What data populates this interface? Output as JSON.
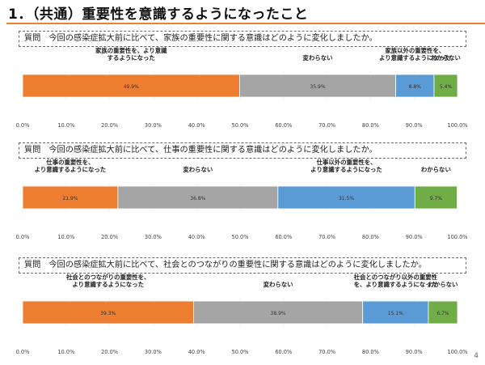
{
  "page": {
    "title": "1．（共通）重要性を意識するようになったこと",
    "page_number": "4"
  },
  "colors": {
    "accent": "#e8823a",
    "series": [
      "#ed7d31",
      "#a5a5a5",
      "#5b9bd5",
      "#70ad47"
    ]
  },
  "chart_data": [
    {
      "type": "bar",
      "orientation": "horizontal-stacked-100",
      "question_prefix": "質問",
      "question": "今回の感染症拡大前に比べて、家族の重要性に関する意識はどのように変化しましたか。",
      "series": [
        {
          "name": "家族の重要性を、より意識するようになった",
          "label_lines": [
            "家族の重要性を、より意識",
            "するようになった"
          ],
          "value": 49.9,
          "value_label": "49.9%"
        },
        {
          "name": "変わらない",
          "label_lines": [
            "変わらない"
          ],
          "value": 35.9,
          "value_label": "35.9%"
        },
        {
          "name": "家族以外の重要性を、より意識するようになった",
          "label_lines": [
            "家族以外の重要性を、",
            "より意識するようになった"
          ],
          "value": 8.8,
          "value_label": "8.8%"
        },
        {
          "name": "わからない",
          "label_lines": [
            "わからない"
          ],
          "value": 5.4,
          "value_label": "5.4%"
        }
      ],
      "xlim": [
        0,
        100
      ],
      "x_ticks": [
        "0.0%",
        "10.0%",
        "20.0%",
        "30.0%",
        "40.0%",
        "50.0%",
        "60.0%",
        "70.0%",
        "80.0%",
        "90.0%",
        "100.0%"
      ]
    },
    {
      "type": "bar",
      "orientation": "horizontal-stacked-100",
      "question_prefix": "質問",
      "question": "今回の感染症拡大前に比べて、仕事の重要性に関する意識はどのように変化しましたか。",
      "series": [
        {
          "name": "仕事の重要性を、より意識するようになった",
          "label_lines": [
            "仕事の重要性を、",
            "より意識するようになった"
          ],
          "value": 21.9,
          "value_label": "21.9%"
        },
        {
          "name": "変わらない",
          "label_lines": [
            "変わらない"
          ],
          "value": 36.8,
          "value_label": "36.8%"
        },
        {
          "name": "仕事以外の重要性を、より意識するようになった",
          "label_lines": [
            "仕事以外の重要性を、",
            "より意識するようになった"
          ],
          "value": 31.5,
          "value_label": "31.5%"
        },
        {
          "name": "わからない",
          "label_lines": [
            "わからない"
          ],
          "value": 9.7,
          "value_label": "9.7%"
        }
      ],
      "xlim": [
        0,
        100
      ],
      "x_ticks": [
        "0.0%",
        "10.0%",
        "20.0%",
        "30.0%",
        "40.0%",
        "50.0%",
        "60.0%",
        "70.0%",
        "80.0%",
        "90.0%",
        "100.0%"
      ]
    },
    {
      "type": "bar",
      "orientation": "horizontal-stacked-100",
      "question_prefix": "質問",
      "question": "今回の感染症拡大前に比べて、社会とのつながりの重要性に関する意識はどのように変化しましたか。",
      "series": [
        {
          "name": "社会とのつながりの重要性を、より意識するようになった",
          "label_lines": [
            "社会とのつながりの重要性を、",
            "より意識するようになった"
          ],
          "value": 39.3,
          "value_label": "39.3%"
        },
        {
          "name": "変わらない",
          "label_lines": [
            "変わらない"
          ],
          "value": 38.9,
          "value_label": "38.9%"
        },
        {
          "name": "社会とのつながり以外の重要性を、より意識するようになった",
          "label_lines": [
            "社会とのつながり以外の重要性",
            "を、より意識するようになった"
          ],
          "value": 15.1,
          "value_label": "15.1%"
        },
        {
          "name": "わからない",
          "label_lines": [
            "わからない"
          ],
          "value": 6.7,
          "value_label": "6.7%"
        }
      ],
      "xlim": [
        0,
        100
      ],
      "x_ticks": [
        "0.0%",
        "10.0%",
        "20.0%",
        "30.0%",
        "40.0%",
        "50.0%",
        "60.0%",
        "70.0%",
        "80.0%",
        "90.0%",
        "100.0%"
      ]
    }
  ]
}
